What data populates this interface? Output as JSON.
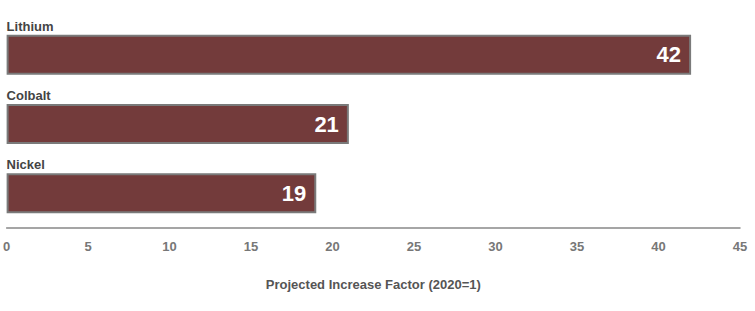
{
  "chart_data": {
    "type": "bar",
    "orientation": "horizontal",
    "categories": [
      "Lithium",
      "Colbalt",
      "Nickel"
    ],
    "values": [
      42,
      21,
      19
    ],
    "color": "#733b3b",
    "xlabel": "Projected Increase Factor (2020=1)",
    "xlim": [
      0,
      45
    ],
    "xticks": [
      0,
      5,
      10,
      15,
      20,
      25,
      30,
      35,
      40,
      45
    ],
    "grid": false,
    "data_labels": true
  }
}
